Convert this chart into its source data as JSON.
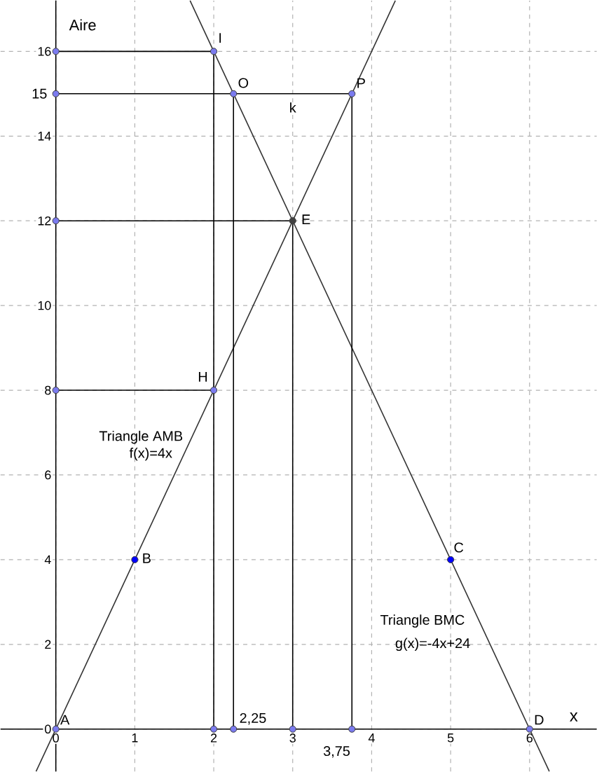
{
  "chart_data": {
    "type": "line",
    "xlabel": "x",
    "ylabel": "Aire",
    "xlim": [
      -0.7,
      6.85
    ],
    "ylim": [
      -1,
      17.2
    ],
    "xticks": [
      0,
      1,
      2,
      3,
      4,
      5,
      6
    ],
    "yticks": [
      0,
      2,
      4,
      6,
      8,
      10,
      12,
      14,
      16
    ],
    "grid": true,
    "line_style": "solid",
    "series": [
      {
        "color": "#333333",
        "x": [
          -0.25,
          4.3
        ],
        "values": [
          -1,
          17.2
        ]
      },
      {
        "color": "#333333",
        "x": [
          1.7,
          6.25
        ],
        "values": [
          17.2,
          -1
        ]
      },
      {
        "color": "#000000",
        "x": [
          0,
          2
        ],
        "values": [
          16,
          16
        ]
      },
      {
        "color": "#000000",
        "x": [
          0,
          3.75
        ],
        "values": [
          15,
          15
        ]
      },
      {
        "color": "#000000",
        "x": [
          0,
          3
        ],
        "values": [
          12,
          12
        ]
      },
      {
        "color": "#000000",
        "x": [
          0,
          2
        ],
        "values": [
          8,
          8
        ]
      },
      {
        "color": "#000000",
        "x": [
          2,
          2
        ],
        "values": [
          0,
          16
        ]
      },
      {
        "color": "#000000",
        "x": [
          2.25,
          2.25
        ],
        "values": [
          0,
          15
        ]
      },
      {
        "color": "#000000",
        "x": [
          3,
          3
        ],
        "values": [
          0,
          12
        ]
      },
      {
        "color": "#000000",
        "x": [
          3.75,
          3.75
        ],
        "values": [
          0,
          15
        ]
      },
      {
        "type": "scatter",
        "color": "#7b7bef",
        "x": [
          0,
          2,
          2,
          2.25,
          3.75,
          6,
          2,
          2.25,
          3,
          3.75,
          0,
          0,
          0,
          0
        ],
        "values": [
          0,
          8,
          16,
          15,
          15,
          0,
          0,
          0,
          0,
          0,
          16,
          15,
          12,
          8
        ]
      },
      {
        "type": "scatter",
        "color": "#0000ff",
        "x": [
          1,
          5
        ],
        "values": [
          4,
          4
        ]
      },
      {
        "type": "scatter",
        "color": "#404040",
        "x": [
          3
        ],
        "values": [
          12
        ]
      }
    ],
    "annotations": [
      {
        "text": "A",
        "x": 0,
        "y": 0
      },
      {
        "text": "B",
        "x": 1,
        "y": 4
      },
      {
        "text": "C",
        "x": 5,
        "y": 4
      },
      {
        "text": "D",
        "x": 6,
        "y": 0
      },
      {
        "text": "E",
        "x": 3,
        "y": 12
      },
      {
        "text": "H",
        "x": 2,
        "y": 8
      },
      {
        "text": "I",
        "x": 2,
        "y": 16
      },
      {
        "text": "O",
        "x": 2.25,
        "y": 15
      },
      {
        "text": "P",
        "x": 3.75,
        "y": 15
      },
      {
        "text": "k",
        "x": 3,
        "y": 15
      },
      {
        "text": "2,25",
        "x": 2.25,
        "y": 0
      },
      {
        "text": "3,75",
        "x": 3.75,
        "y": 0
      },
      {
        "text": "15",
        "x": 0,
        "y": 15
      },
      {
        "text": "Triangle AMB",
        "x": 1.72,
        "y": 6.89
      },
      {
        "text": "f(x)=4x",
        "x": 1.62,
        "y": 6.49
      },
      {
        "text": "Triangle BMC",
        "x": 5.36,
        "y": 2.55
      },
      {
        "text": "g(x)=-4x+24",
        "x": 5.5,
        "y": 2
      }
    ]
  }
}
